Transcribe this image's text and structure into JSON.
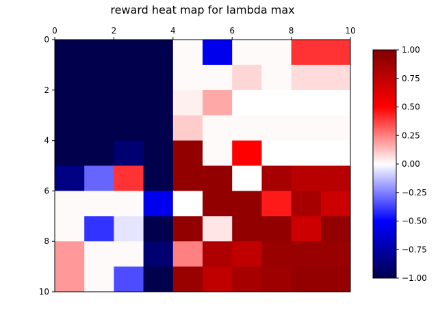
{
  "chart_data": {
    "type": "heatmap",
    "title": "reward heat map for lambda max",
    "xlabel": "",
    "ylabel": "",
    "xlim": [
      0,
      10
    ],
    "ylim": [
      10,
      0
    ],
    "x_axis_position": "top",
    "x_ticks": [
      "0",
      "2",
      "4",
      "6",
      "8",
      "10"
    ],
    "y_ticks": [
      "0",
      "2",
      "4",
      "6",
      "8",
      "10"
    ],
    "colormap": "seismic",
    "vmin": -1.0,
    "vmax": 1.0,
    "colorbar_ticks": [
      "1.00",
      "0.75",
      "0.50",
      "0.25",
      "0.00",
      "−0.25",
      "−0.50",
      "−0.75",
      "−1.00"
    ],
    "colorbar_values": [
      1.0,
      0.75,
      0.5,
      0.25,
      0.0,
      -0.25,
      -0.5,
      -0.75,
      -1.0
    ],
    "grid": false,
    "rows": 10,
    "cols": 10,
    "values": [
      [
        -1.0,
        -1.0,
        -1.0,
        -1.0,
        0.01,
        -0.55,
        0.01,
        0.01,
        0.4,
        0.4
      ],
      [
        -1.0,
        -1.0,
        -1.0,
        -1.0,
        0.01,
        0.01,
        0.08,
        0.01,
        0.07,
        0.07
      ],
      [
        -1.0,
        -1.0,
        -1.0,
        -1.0,
        0.03,
        0.17,
        0.0,
        0.0,
        0.0,
        0.0
      ],
      [
        -1.0,
        -1.0,
        -1.0,
        -1.0,
        0.1,
        0.01,
        0.01,
        0.01,
        0.01,
        0.01
      ],
      [
        -1.0,
        -1.0,
        -0.9,
        -1.0,
        0.93,
        0.01,
        0.5,
        0.0,
        0.0,
        0.0
      ],
      [
        -0.85,
        -0.3,
        0.4,
        -1.0,
        0.93,
        0.93,
        0.0,
        0.85,
        0.78,
        0.78
      ],
      [
        0.01,
        0.01,
        0.01,
        -0.55,
        0.0,
        0.93,
        0.93,
        0.45,
        0.85,
        0.7
      ],
      [
        0.01,
        -0.4,
        -0.05,
        -1.0,
        0.93,
        0.05,
        0.93,
        0.93,
        0.7,
        0.93
      ],
      [
        0.2,
        0.01,
        0.01,
        -0.9,
        0.25,
        0.82,
        0.75,
        0.9,
        0.9,
        0.9
      ],
      [
        0.2,
        0.01,
        -0.35,
        -1.0,
        0.9,
        0.75,
        0.85,
        0.88,
        0.92,
        0.92
      ]
    ]
  }
}
